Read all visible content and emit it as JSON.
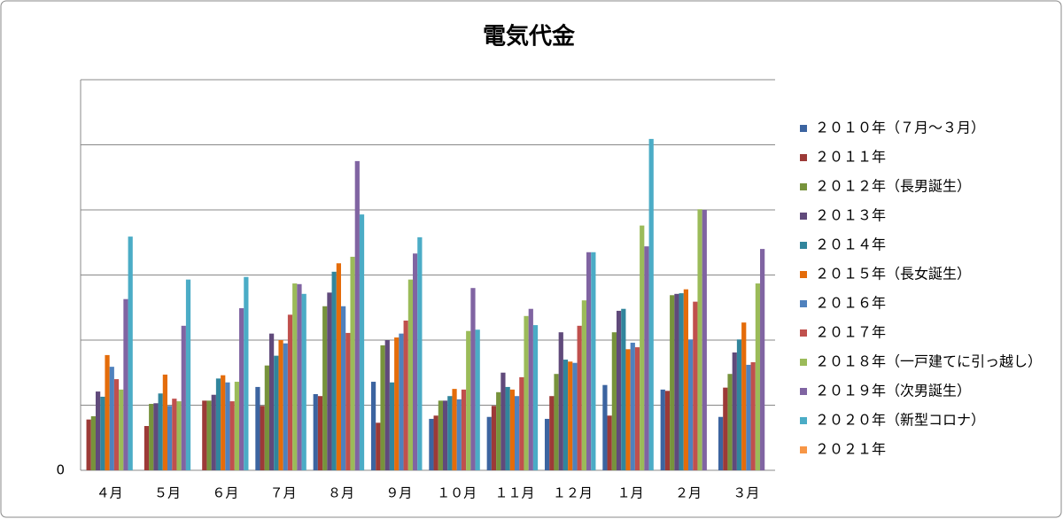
{
  "chart_data": {
    "type": "bar",
    "title": "電気代金",
    "categories": [
      "４月",
      "５月",
      "６月",
      "７月",
      "８月",
      "９月",
      "１０月",
      "１１月",
      "１２月",
      "１月",
      "２月",
      "３月"
    ],
    "ylim": [
      0,
      6
    ],
    "yticks": [
      0
    ],
    "gridlines": [
      1,
      2,
      3,
      4,
      5,
      6
    ],
    "grid": true,
    "legend": "right",
    "series": [
      {
        "name": "２０１０年（７月～３月）",
        "color": "#3c64a0",
        "values": [
          null,
          null,
          null,
          1.28,
          1.17,
          1.36,
          0.79,
          0.82,
          0.79,
          1.31,
          1.24,
          0.82
        ]
      },
      {
        "name": "２０１１年",
        "color": "#9c3a37",
        "values": [
          0.78,
          0.68,
          1.07,
          0.99,
          1.14,
          0.73,
          0.84,
          0.99,
          1.14,
          0.84,
          1.22,
          1.27
        ]
      },
      {
        "name": "２０１２年（長男誕生）",
        "color": "#77933c",
        "values": [
          0.83,
          1.02,
          1.07,
          1.61,
          2.52,
          1.92,
          1.07,
          1.2,
          1.48,
          2.12,
          2.69,
          1.48
        ]
      },
      {
        "name": "２０１３年",
        "color": "#604a7b",
        "values": [
          1.21,
          1.03,
          1.16,
          2.1,
          2.73,
          2.0,
          1.07,
          1.5,
          2.12,
          2.45,
          2.71,
          1.81
        ]
      },
      {
        "name": "２０１４年",
        "color": "#31859c",
        "values": [
          1.13,
          1.18,
          1.41,
          1.76,
          3.05,
          1.35,
          1.14,
          1.28,
          1.7,
          2.48,
          2.72,
          2.01
        ]
      },
      {
        "name": "２０１５年（長女誕生）",
        "color": "#e46c0a",
        "values": [
          1.77,
          1.47,
          1.46,
          2.0,
          3.18,
          2.04,
          1.25,
          1.24,
          1.67,
          1.86,
          2.78,
          2.27
        ]
      },
      {
        "name": "２０１６年",
        "color": "#4f81bd",
        "values": [
          1.59,
          0.99,
          1.35,
          1.95,
          2.52,
          2.1,
          1.09,
          1.14,
          1.65,
          1.96,
          2.01,
          1.62
        ]
      },
      {
        "name": "２０１７年",
        "color": "#c0504d",
        "values": [
          1.4,
          1.1,
          1.06,
          2.39,
          2.11,
          2.3,
          1.24,
          1.43,
          2.22,
          1.89,
          2.59,
          1.66
        ]
      },
      {
        "name": "２０１８年（一戸建てに引っ越し）",
        "color": "#9bbb59",
        "values": [
          1.24,
          1.06,
          1.36,
          2.87,
          3.28,
          2.93,
          2.14,
          2.37,
          2.61,
          3.76,
          4.01,
          2.87
        ]
      },
      {
        "name": "２０１９年（次男誕生）",
        "color": "#8064a2",
        "values": [
          2.63,
          2.22,
          2.49,
          2.86,
          4.75,
          3.33,
          2.8,
          2.48,
          3.35,
          3.44,
          4.0,
          3.4
        ]
      },
      {
        "name": "２０２０年（新型コロナ）",
        "color": "#4bacc6",
        "values": [
          3.59,
          2.93,
          2.97,
          2.71,
          3.93,
          3.58,
          2.16,
          2.23,
          3.35,
          5.09,
          null,
          null
        ]
      },
      {
        "name": "２０２１年",
        "color": "#f79646",
        "values": [
          null,
          null,
          null,
          null,
          null,
          null,
          null,
          null,
          null,
          null,
          null,
          null
        ]
      }
    ]
  }
}
